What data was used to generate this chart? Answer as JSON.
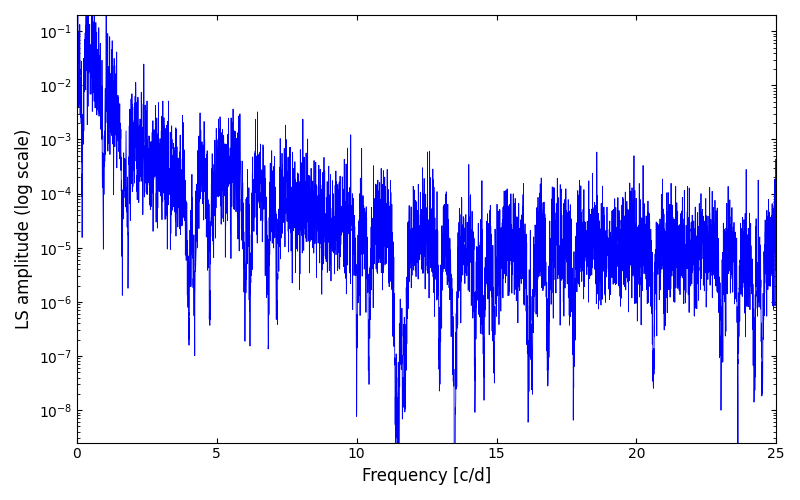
{
  "xlabel": "Frequency [c/d]",
  "ylabel": "LS amplitude (log scale)",
  "xlim": [
    0,
    25
  ],
  "ylim_log": [
    -8.6,
    -0.7
  ],
  "line_color": "#0000ff",
  "line_width": 0.6,
  "background_color": "#ffffff",
  "figsize": [
    8.0,
    5.0
  ],
  "dpi": 100,
  "freq_max": 25.0,
  "n_points": 5000,
  "seed": 42
}
